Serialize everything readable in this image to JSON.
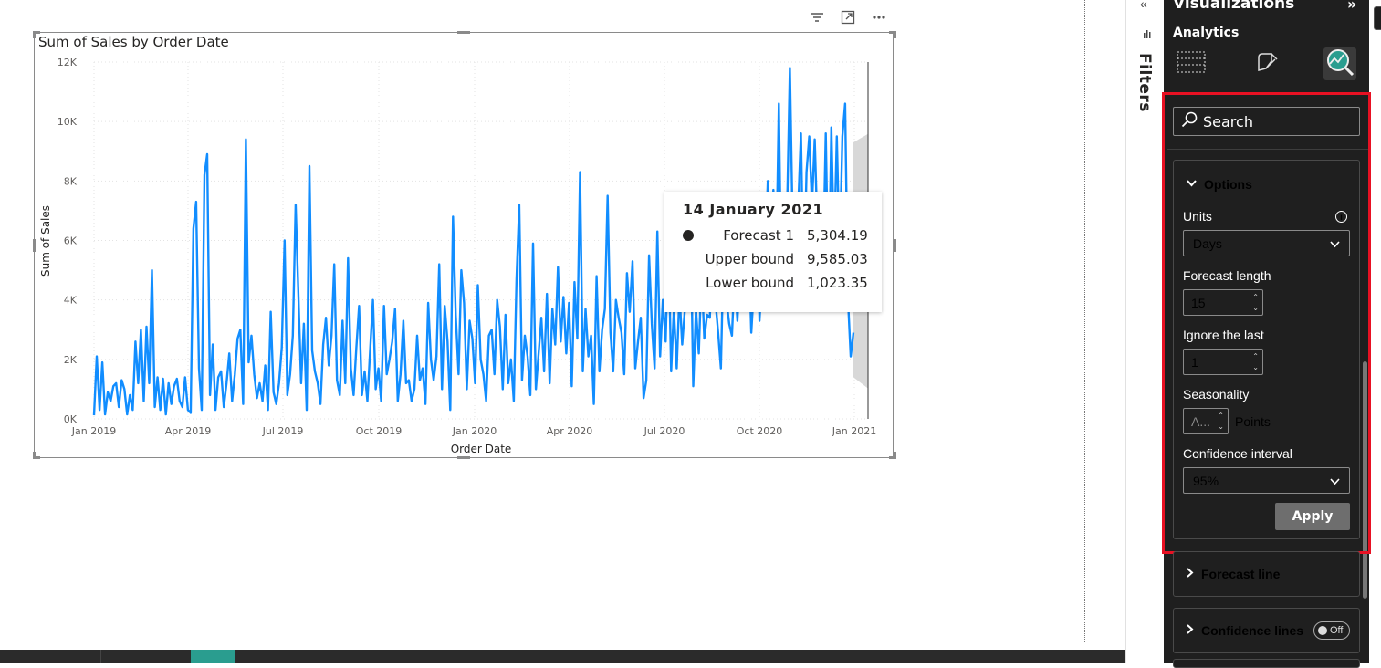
{
  "chart_data": {
    "type": "line",
    "title": "Sum of Sales by Order Date",
    "xlabel": "Order Date",
    "ylabel": "Sum of Sales",
    "x_ticks": [
      "Jan 2019",
      "Apr 2019",
      "Jul 2019",
      "Oct 2019",
      "Jan 2020",
      "Apr 2020",
      "Jul 2020",
      "Oct 2020",
      "Jan 2021"
    ],
    "y_ticks": [
      "0K",
      "2K",
      "4K",
      "6K",
      "8K",
      "10K",
      "12K"
    ],
    "ylim": [
      0,
      12000
    ],
    "series_color": "#118dff",
    "forecast_band_color": "#d8d8d8",
    "series": [
      {
        "name": "Sum of Sales",
        "values": [
          120,
          2100,
          300,
          1900,
          150,
          900,
          600,
          1100,
          1200,
          400,
          1300,
          1000,
          150,
          800,
          300,
          2600,
          1200,
          3000,
          600,
          3100,
          1200,
          5000,
          400,
          1400,
          300,
          1350,
          150,
          1200,
          500,
          1100,
          1350,
          600,
          400,
          1400,
          300,
          200,
          6400,
          7300,
          1700,
          300,
          8200,
          8900,
          800,
          2500,
          300,
          1400,
          1600,
          400,
          1200,
          2200,
          600,
          1500,
          2700,
          3000,
          500,
          9400,
          1900,
          2800,
          1500,
          700,
          1200,
          600,
          1800,
          300,
          3600,
          900,
          500,
          1200,
          2400,
          6000,
          800,
          1500,
          2800,
          7200,
          4200,
          1200,
          3200,
          300,
          8500,
          2300,
          1600,
          1200,
          500,
          2500,
          3400,
          1800,
          2800,
          5200,
          1300,
          800,
          3300,
          1200,
          5400,
          1700,
          800,
          2400,
          3800,
          800,
          1600,
          600,
          2300,
          4000,
          1000,
          1700,
          600,
          3800,
          1500,
          2000,
          2600,
          3700,
          600,
          1500,
          3300,
          1200,
          1300,
          600,
          1000,
          2800,
          1300,
          1700,
          500,
          3900,
          2000,
          1300,
          2100,
          5200,
          1000,
          3800,
          2600,
          300,
          6800,
          3500,
          1500,
          5000,
          3900,
          1000,
          3300,
          2700,
          1200,
          4500,
          2000,
          1500,
          600,
          2800,
          3000,
          1500,
          4000,
          3100,
          1000,
          3500,
          1200,
          2000,
          600,
          4700,
          7200,
          1300,
          2800,
          2100,
          800,
          5900,
          1000,
          2200,
          3400,
          1600,
          4200,
          1200,
          3700,
          2500,
          5100,
          2600,
          4100,
          2200,
          3900,
          1100,
          4600,
          2700,
          8300,
          1600,
          3700,
          2100,
          2800,
          500,
          4800,
          1600,
          3000,
          3700,
          7500,
          2900,
          1600,
          4000,
          3400,
          2900,
          1500,
          4900,
          3600,
          5300,
          1700,
          2600,
          3400,
          700,
          1300,
          5500,
          3200,
          1700,
          6300,
          2100,
          4000,
          2600,
          6100,
          1600,
          3700,
          1700,
          4200,
          2500,
          3700,
          4500,
          6800,
          1100,
          3700,
          2200,
          5000,
          2700,
          3500,
          3400,
          6200,
          4000,
          2900,
          1700,
          5800,
          4000,
          3200,
          2800,
          4900,
          3300,
          5300,
          6000,
          5100,
          6100,
          2900,
          4500,
          7600,
          3300,
          5000,
          5200,
          8000,
          4400,
          7700,
          4900,
          10600,
          3800,
          5900,
          7100,
          11800,
          6500,
          5800,
          7100,
          9600,
          4200,
          8300,
          9500,
          7200,
          9400,
          6200,
          7100,
          5000,
          9600,
          4000,
          9800,
          5600,
          9500,
          5400,
          9500,
          10600,
          4100,
          2100,
          2900
        ]
      },
      {
        "name": "Forecast 1",
        "values": [
          5304.19
        ]
      }
    ],
    "forecast_band": {
      "upper_start": 9300,
      "upper_end": 9585.03,
      "lower_start": 1400,
      "lower_end": 1023.35
    },
    "annotations": [],
    "tooltip": {
      "title": "14 January 2021",
      "rows": [
        {
          "label": "Forecast 1",
          "value": "5,304.19"
        },
        {
          "label": "Upper bound",
          "value": "9,585.03"
        },
        {
          "label": "Lower bound",
          "value": "1,023.35"
        }
      ]
    }
  },
  "visual_header": {
    "filter_icon": "filter-icon",
    "focus_icon": "focus-mode-icon",
    "more_icon": "more-options-icon"
  },
  "filters_pane": {
    "label": "Filters"
  },
  "viz_pane": {
    "title": "Visualizations",
    "collapse_glyph": "»",
    "subtitle": "Analytics",
    "search_placeholder": "Search",
    "options": {
      "header": "Options",
      "units_label": "Units",
      "units_value": "Days",
      "forecast_length_label": "Forecast length",
      "forecast_length_value": "15",
      "ignore_last_label": "Ignore the last",
      "ignore_last_value": "1",
      "seasonality_label": "Seasonality",
      "seasonality_value": "A...",
      "seasonality_unit": "Points",
      "confidence_label": "Confidence interval",
      "confidence_value": "95%",
      "apply_label": "Apply"
    },
    "sections": [
      {
        "label": "Forecast line"
      },
      {
        "label": "Confidence lines",
        "toggle": "Off"
      }
    ]
  },
  "colors": {
    "accent_red": "#e81123",
    "pane_bg": "#1f1f1f",
    "tab_active": "#2a9d8f"
  }
}
